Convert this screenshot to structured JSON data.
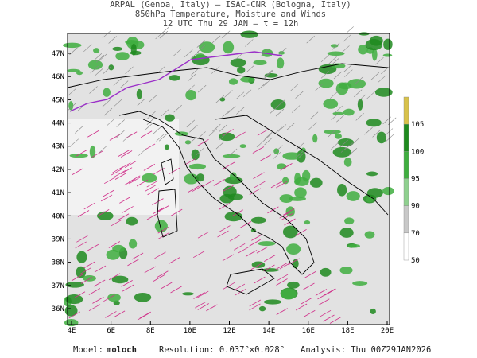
{
  "header": {
    "line1": "ARPAL (Genoa, Italy)  —  ISAC-CNR (Bologna, Italy)",
    "line2": "850hPa Temperature, Moisture and Winds",
    "line3": "12 UTC Thu 29 JAN  —  τ = 12h"
  },
  "map": {
    "lat_labels": [
      "47N",
      "46N",
      "45N",
      "44N",
      "43N",
      "42N",
      "41N",
      "40N",
      "39N",
      "38N",
      "37N",
      "36N"
    ],
    "lon_labels": [
      "4E",
      "6E",
      "8E",
      "10E",
      "12E",
      "14E",
      "16E",
      "18E",
      "20E"
    ]
  },
  "colorbar": {
    "labels": [
      105,
      100,
      95,
      90,
      70,
      50
    ],
    "colors": [
      "#d8c24a",
      "#1e8a1e",
      "#3fae3f",
      "#8fd08f",
      "#c8c8c8",
      "#ffffff"
    ]
  },
  "footer": {
    "model_label": "Model:",
    "model": "moloch",
    "resolution": "Resolution: 0.037°×0.028°",
    "analysis": "Analysis: Thu 00Z29JAN2026"
  }
}
